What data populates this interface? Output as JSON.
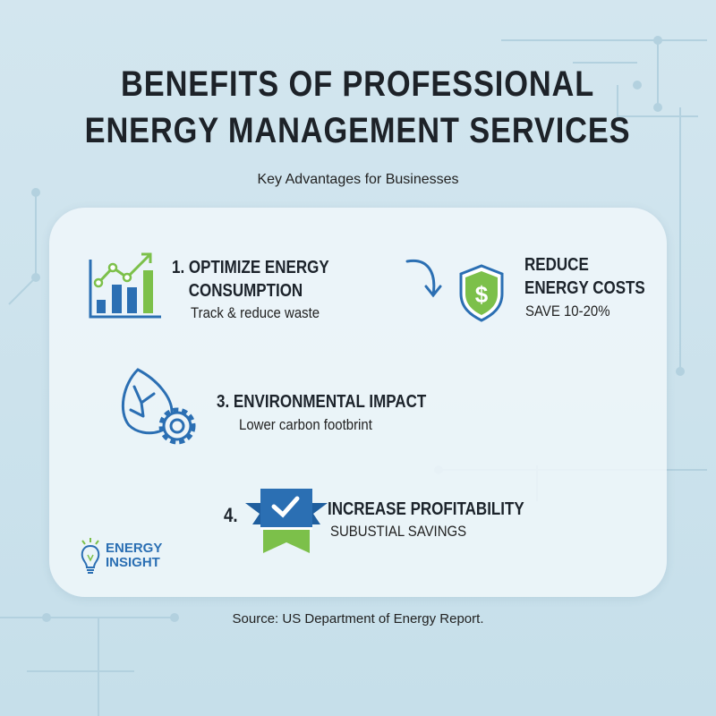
{
  "title_line1": "BENEFITS OF PROFESSIONAL",
  "title_line2": "ENERGY MANAGEMENT SERVICES",
  "subtitle": "Key Advantages for Businesses",
  "items": [
    {
      "heading_line1": "1. OPTIMIZE ENERGY",
      "heading_line2": "CONSUMPTION",
      "sub": "Track & reduce waste",
      "icon": "bar-chart-growth-icon"
    },
    {
      "heading_line1": "REDUCE",
      "heading_line2": "ENERGY COSTS",
      "sub": "SAVE 10-20%",
      "icon": "shield-dollar-icon"
    },
    {
      "number": "3.",
      "heading": "ENVIRONMENTAL IMPACT",
      "sub": "Lower carbon footbrint",
      "icon": "leaf-gear-icon"
    },
    {
      "number": "4.",
      "heading": "INCREASE PROFITABILITY",
      "sub": "SUBUSTIAL SAVINGS",
      "icon": "ribbon-check-icon"
    }
  ],
  "logo": {
    "line1": "ENERGY",
    "line2": "INSIGHT"
  },
  "source": "Source: US Department of Energy Report.",
  "colors": {
    "blue": "#2b6fb3",
    "green": "#7cc04a",
    "background": "#cfe4ee"
  }
}
